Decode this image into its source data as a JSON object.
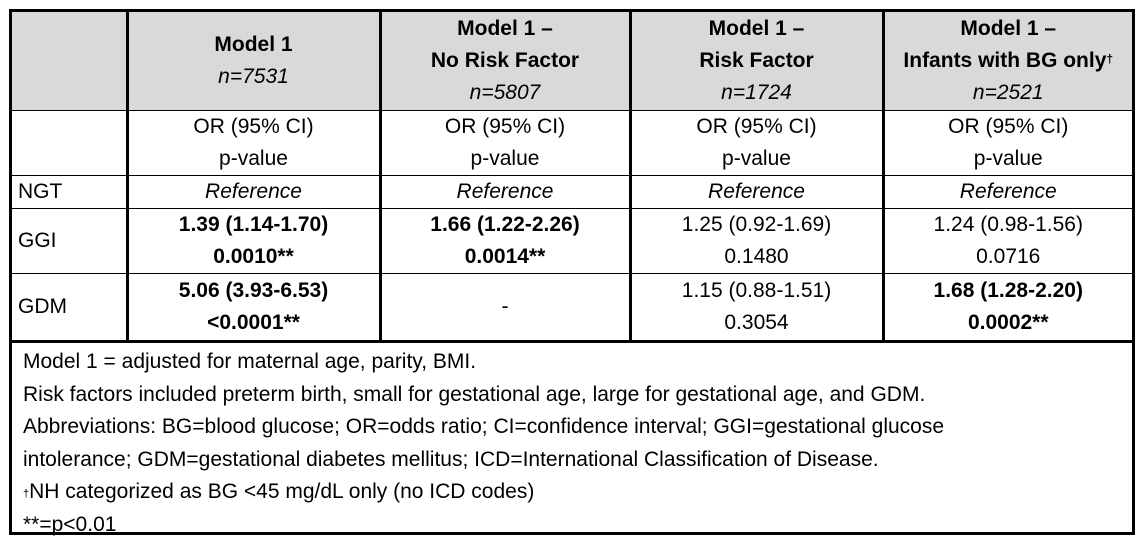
{
  "table": {
    "columns": [
      {
        "title": "Model 1",
        "title2": "",
        "n": "n=7531"
      },
      {
        "title": "Model 1 –",
        "title2": "No Risk Factor",
        "n": "n=5807"
      },
      {
        "title": "Model 1 –",
        "title2": "Risk Factor",
        "n": "n=1724"
      },
      {
        "title": "Model 1 –",
        "title2": "Infants with BG only",
        "n": "n=2521",
        "dagger": "†"
      }
    ],
    "subheader": {
      "line1": "OR (95% CI)",
      "line2": "p-value"
    },
    "rows": [
      {
        "label": "NGT",
        "cells": [
          {
            "line1": "Reference",
            "line2": "",
            "bold": false,
            "italic": true
          },
          {
            "line1": "Reference",
            "line2": "",
            "bold": false,
            "italic": true
          },
          {
            "line1": "Reference",
            "line2": "",
            "bold": false,
            "italic": true
          },
          {
            "line1": "Reference",
            "line2": "",
            "bold": false,
            "italic": true
          }
        ]
      },
      {
        "label": "GGI",
        "cells": [
          {
            "line1": "1.39 (1.14-1.70)",
            "line2": "0.0010**",
            "bold": true,
            "italic": false
          },
          {
            "line1": "1.66 (1.22-2.26)",
            "line2": "0.0014**",
            "bold": true,
            "italic": false
          },
          {
            "line1": "1.25 (0.92-1.69)",
            "line2": "0.1480",
            "bold": false,
            "italic": false
          },
          {
            "line1": "1.24 (0.98-1.56)",
            "line2": "0.0716",
            "bold": false,
            "italic": false
          }
        ]
      },
      {
        "label": "GDM",
        "cells": [
          {
            "line1": "5.06 (3.93-6.53)",
            "line2": "<0.0001**",
            "bold": true,
            "italic": false
          },
          {
            "line1": "-",
            "line2": "",
            "bold": false,
            "italic": false
          },
          {
            "line1": "1.15 (0.88-1.51)",
            "line2": "0.3054",
            "bold": false,
            "italic": false
          },
          {
            "line1": "1.68 (1.28-2.20)",
            "line2": "0.0002**",
            "bold": true,
            "italic": false
          }
        ]
      }
    ]
  },
  "notes": {
    "line1": "Model 1 = adjusted for maternal age, parity, BMI.",
    "line2": "Risk factors included preterm birth, small for gestational age, large for gestational age, and GDM.",
    "line3": "Abbreviations: BG=blood glucose; OR=odds ratio; CI=confidence interval; GGI=gestational glucose",
    "line4": "intolerance; GDM=gestational diabetes mellitus; ICD=International Classification of Disease.",
    "dagger": "†",
    "line5": "NH categorized as BG <45 mg/dL only (no ICD codes)",
    "line6": "**=p<0.01"
  }
}
